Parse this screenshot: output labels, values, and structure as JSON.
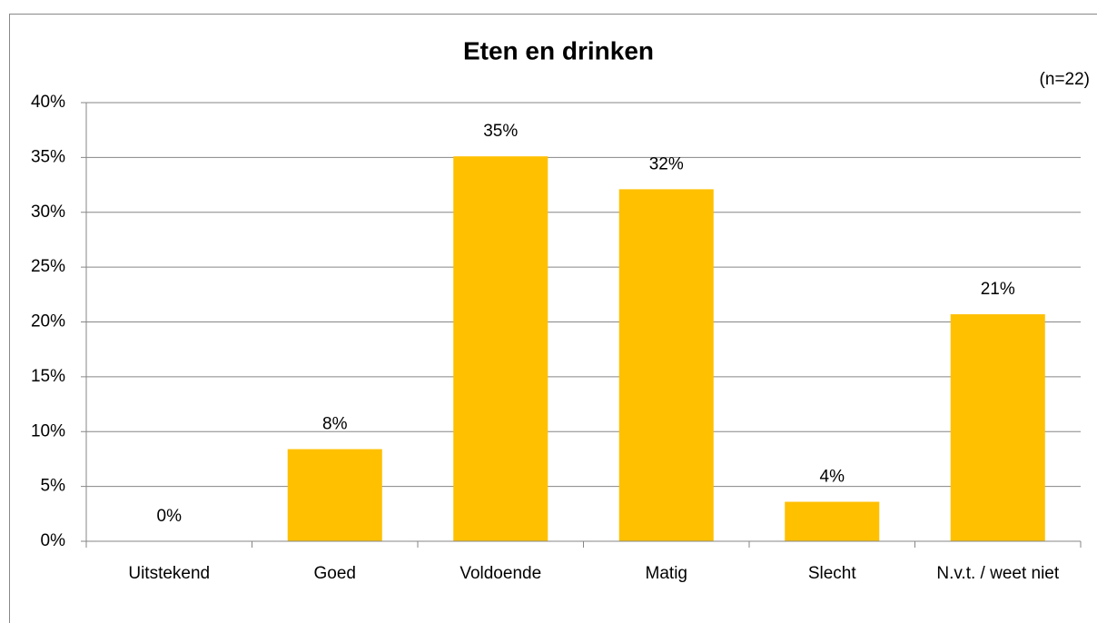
{
  "chart_data": {
    "type": "bar",
    "title": "Eten en drinken",
    "subtitle": "(n=22)",
    "categories": [
      "Uitstekend",
      "Goed",
      "Voldoende",
      "Matig",
      "Slecht",
      "N.v.t. / weet niet"
    ],
    "values": [
      0,
      8.4,
      35.1,
      32.1,
      3.6,
      20.7
    ],
    "value_labels": [
      "0%",
      "8%",
      "35%",
      "32%",
      "4%",
      "21%"
    ],
    "color": "#ffc000",
    "ylim": [
      0,
      40
    ],
    "yticks": [
      {
        "value": 0,
        "label": "0%"
      },
      {
        "value": 5,
        "label": "5%"
      },
      {
        "value": 10,
        "label": "10%"
      },
      {
        "value": 15,
        "label": "15%"
      },
      {
        "value": 20,
        "label": "20%"
      },
      {
        "value": 25,
        "label": "25%"
      },
      {
        "value": 30,
        "label": "30%"
      },
      {
        "value": 35,
        "label": "35%"
      },
      {
        "value": 40,
        "label": "40%"
      }
    ],
    "grid": true
  }
}
